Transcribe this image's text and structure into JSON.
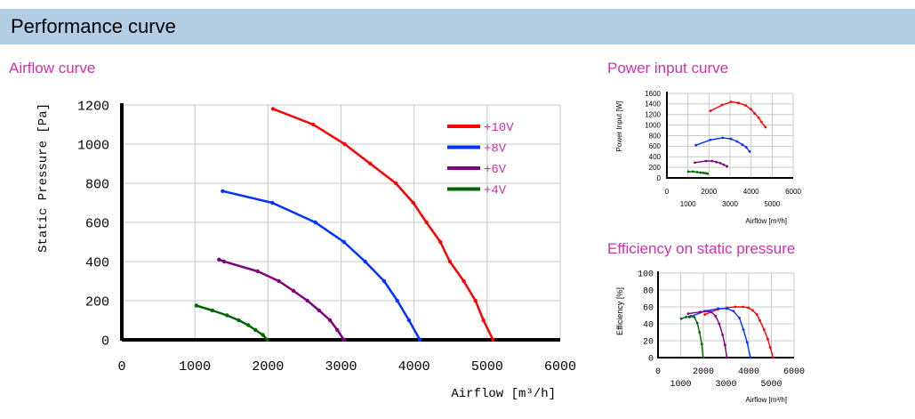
{
  "header": {
    "title": "Performance curve"
  },
  "colors": {
    "header_bg": "#b3cde5",
    "section_title": "#cc33aa",
    "grid": "#c8c8c8",
    "axis": "#000000"
  },
  "chart_data": [
    {
      "type": "line",
      "title": "Airflow curve",
      "xlabel": "Airflow [m³/h]",
      "ylabel": "Static Pressure [Pa]",
      "xlim": [
        0,
        6000
      ],
      "ylim": [
        0,
        1200
      ],
      "xticks": [
        0,
        1000,
        2000,
        3000,
        4000,
        5000,
        6000
      ],
      "yticks": [
        0,
        200,
        400,
        600,
        800,
        1000,
        1200
      ],
      "grid": true,
      "legend_position": "top-right",
      "series": [
        {
          "name": "+10V",
          "color": "#ff0000",
          "points": [
            [
              2070,
              1180
            ],
            [
              2620,
              1100
            ],
            [
              3050,
              1000
            ],
            [
              3400,
              900
            ],
            [
              3750,
              800
            ],
            [
              3990,
              700
            ],
            [
              4170,
              600
            ],
            [
              4360,
              500
            ],
            [
              4490,
              400
            ],
            [
              4680,
              300
            ],
            [
              4840,
              200
            ],
            [
              4950,
              100
            ],
            [
              5080,
              0
            ]
          ]
        },
        {
          "name": "+8V",
          "color": "#0033ff",
          "points": [
            [
              1380,
              760
            ],
            [
              2060,
              700
            ],
            [
              2650,
              600
            ],
            [
              3040,
              500
            ],
            [
              3330,
              400
            ],
            [
              3590,
              300
            ],
            [
              3770,
              200
            ],
            [
              3930,
              100
            ],
            [
              4080,
              0
            ]
          ]
        },
        {
          "name": "+6V",
          "color": "#800080",
          "points": [
            [
              1330,
              410
            ],
            [
              1400,
              400
            ],
            [
              1860,
              350
            ],
            [
              2150,
              300
            ],
            [
              2350,
              250
            ],
            [
              2540,
              200
            ],
            [
              2700,
              150
            ],
            [
              2850,
              100
            ],
            [
              2950,
              50
            ],
            [
              3040,
              0
            ]
          ]
        },
        {
          "name": "+4V",
          "color": "#006600",
          "points": [
            [
              1020,
              175
            ],
            [
              1240,
              150
            ],
            [
              1440,
              125
            ],
            [
              1600,
              100
            ],
            [
              1730,
              75
            ],
            [
              1830,
              50
            ],
            [
              1930,
              25
            ],
            [
              1990,
              0
            ]
          ]
        }
      ]
    },
    {
      "type": "line",
      "title": "Power input curve",
      "xlabel": "Airflow [m³/h]",
      "ylabel": "Power Input [W]",
      "xlim": [
        0,
        6000
      ],
      "ylim": [
        0,
        1600
      ],
      "xticks": [
        0,
        1000,
        2000,
        3000,
        4000,
        5000,
        6000
      ],
      "yticks": [
        0,
        200,
        400,
        600,
        800,
        1000,
        1200,
        1400,
        1600
      ],
      "grid": true,
      "series": [
        {
          "color": "#ff0000",
          "points": [
            [
              2070,
              1270
            ],
            [
              2620,
              1380
            ],
            [
              3050,
              1440
            ],
            [
              3400,
              1420
            ],
            [
              3750,
              1370
            ],
            [
              3990,
              1300
            ],
            [
              4170,
              1220
            ],
            [
              4360,
              1140
            ],
            [
              4490,
              1060
            ],
            [
              4680,
              960
            ]
          ]
        },
        {
          "color": "#0033ff",
          "points": [
            [
              1380,
              620
            ],
            [
              2060,
              720
            ],
            [
              2650,
              760
            ],
            [
              3040,
              740
            ],
            [
              3330,
              690
            ],
            [
              3590,
              630
            ],
            [
              3770,
              580
            ],
            [
              3930,
              500
            ]
          ]
        },
        {
          "color": "#800080",
          "points": [
            [
              1330,
              290
            ],
            [
              1860,
              320
            ],
            [
              2150,
              320
            ],
            [
              2350,
              300
            ],
            [
              2540,
              280
            ],
            [
              2700,
              250
            ],
            [
              2850,
              220
            ]
          ]
        },
        {
          "color": "#006600",
          "points": [
            [
              1020,
              120
            ],
            [
              1240,
              120
            ],
            [
              1440,
              110
            ],
            [
              1600,
              100
            ],
            [
              1730,
              95
            ],
            [
              1830,
              90
            ],
            [
              1930,
              80
            ]
          ]
        }
      ]
    },
    {
      "type": "line",
      "title": "Efficiency on static pressure",
      "xlabel": "Airflow [m³/h]",
      "ylabel": "Efficiency [%]",
      "xlim": [
        0,
        6000
      ],
      "ylim": [
        0,
        100
      ],
      "xticks": [
        0,
        1000,
        2000,
        3000,
        4000,
        5000,
        6000
      ],
      "yticks": [
        0,
        20,
        40,
        60,
        80,
        100
      ],
      "grid": true,
      "series": [
        {
          "color": "#ff0000",
          "points": [
            [
              2070,
              51
            ],
            [
              2620,
              57
            ],
            [
              3050,
              59
            ],
            [
              3400,
              60
            ],
            [
              3750,
              60
            ],
            [
              3990,
              59
            ],
            [
              4170,
              56
            ],
            [
              4360,
              51
            ],
            [
              4490,
              44
            ],
            [
              4680,
              33
            ],
            [
              4840,
              22
            ],
            [
              4950,
              12
            ],
            [
              5080,
              0
            ]
          ]
        },
        {
          "color": "#0033ff",
          "points": [
            [
              1380,
              48
            ],
            [
              2060,
              55
            ],
            [
              2650,
              58
            ],
            [
              3040,
              58
            ],
            [
              3330,
              55
            ],
            [
              3590,
              47
            ],
            [
              3770,
              33
            ],
            [
              3930,
              18
            ],
            [
              4080,
              0
            ]
          ]
        },
        {
          "color": "#800080",
          "points": [
            [
              1330,
              52
            ],
            [
              1860,
              54
            ],
            [
              2150,
              55
            ],
            [
              2350,
              54
            ],
            [
              2540,
              49
            ],
            [
              2700,
              40
            ],
            [
              2850,
              27
            ],
            [
              2950,
              15
            ],
            [
              3040,
              0
            ]
          ]
        },
        {
          "color": "#006600",
          "points": [
            [
              1020,
              46
            ],
            [
              1240,
              48
            ],
            [
              1440,
              49
            ],
            [
              1600,
              48
            ],
            [
              1730,
              41
            ],
            [
              1830,
              30
            ],
            [
              1930,
              16
            ],
            [
              1990,
              0
            ]
          ]
        }
      ]
    }
  ]
}
